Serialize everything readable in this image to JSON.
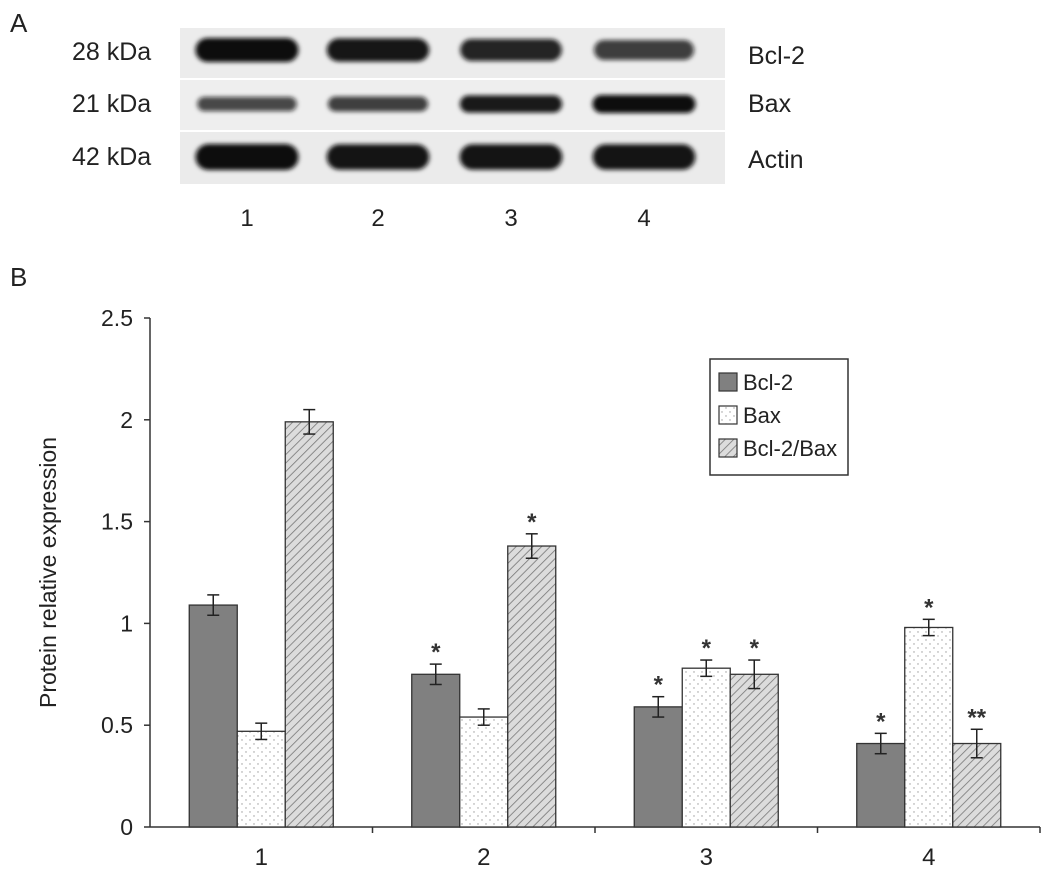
{
  "panel_a": {
    "label": "A",
    "rows": [
      {
        "kda": "28 kDa",
        "protein": "Bcl-2",
        "intensities": [
          1.0,
          0.92,
          0.82,
          0.62
        ]
      },
      {
        "kda": "21 kDa",
        "protein": "Bax",
        "intensities": [
          0.55,
          0.62,
          0.9,
          1.0
        ]
      },
      {
        "kda": "42 kDa",
        "protein": "Actin",
        "intensities": [
          1.0,
          0.95,
          0.95,
          0.95
        ]
      }
    ],
    "lanes": [
      "1",
      "2",
      "3",
      "4"
    ]
  },
  "panel_b": {
    "label": "B"
  },
  "chart_data": {
    "type": "bar",
    "categories": [
      "1",
      "2",
      "3",
      "4"
    ],
    "series": [
      {
        "name": "Bcl-2",
        "values": [
          1.09,
          0.75,
          0.59,
          0.41
        ],
        "errors": [
          0.05,
          0.05,
          0.05,
          0.05
        ],
        "marks": [
          "",
          "*",
          "*",
          "*"
        ],
        "fill": "#808080"
      },
      {
        "name": "Bax",
        "values": [
          0.47,
          0.54,
          0.78,
          0.98
        ],
        "errors": [
          0.04,
          0.04,
          0.04,
          0.04
        ],
        "marks": [
          "",
          "",
          "*",
          "*"
        ],
        "fill": "#ffffff"
      },
      {
        "name": "Bcl-2/Bax",
        "values": [
          1.99,
          1.38,
          0.75,
          0.41
        ],
        "errors": [
          0.06,
          0.06,
          0.07,
          0.07
        ],
        "marks": [
          "",
          "*",
          "*",
          "**"
        ],
        "fill": "#d9d9d9"
      }
    ],
    "ylabel": "Protein relative expression",
    "xlabel": "",
    "ylim": [
      0,
      2.5
    ],
    "yticks": [
      "0",
      "0.5",
      "1",
      "1.5",
      "2",
      "2.5"
    ],
    "ytick_values": [
      0,
      0.5,
      1,
      1.5,
      2,
      2.5
    ],
    "legend_position": "top-right",
    "grid": false
  }
}
